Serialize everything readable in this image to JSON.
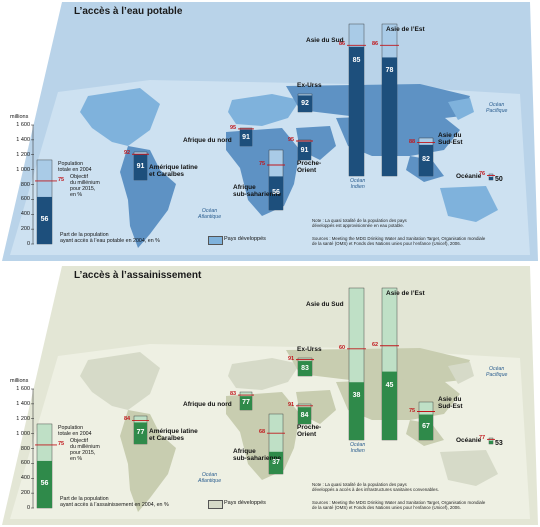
{
  "colors": {
    "water_bg": "#b9d3e9",
    "water_land": "#5e92c4",
    "water_dev": "#7fb2dc",
    "water_bar_light": "#a9cbe7",
    "water_bar_dark": "#1d4f7c",
    "sanit_bg": "#e3e6d5",
    "sanit_land": "#c8cdb0",
    "sanit_dev": "#d6dac8",
    "sanit_bar_light": "#bfe0c6",
    "sanit_bar_dark": "#2f8a4a",
    "target_red": "#c0161b"
  },
  "water": {
    "title": "L’accès à l’eau potable",
    "units": "millions",
    "axis_ticks": [
      "1 600",
      "1 400",
      "1 200",
      "1 000",
      "800",
      "600",
      "400",
      "200",
      "0"
    ],
    "legend": {
      "population": [
        "Population",
        "totale en 2004"
      ],
      "objective": [
        "Objectif",
        "du millénium",
        "pour 2015,",
        "en %"
      ],
      "share": [
        "Part de la population",
        "ayant accès à l’eau potable en 2004, en %"
      ],
      "example_objective": "75",
      "example_value": "56"
    },
    "developed_label": "Pays développés",
    "note": [
      "Note : La quasi totalité de la population des pays",
      "développés est approvisionnée en eau potable."
    ],
    "sources": [
      "Sources : Meeting the MDG Drinking Water and Sanitation Target, Organisation mondiale",
      "de la santé (OMS) et Fonds des Nations unies pour l’enfance (Unicef), 2006."
    ],
    "oceans": {
      "pacific": [
        "Océan",
        "Pacifique"
      ],
      "atlantic": [
        "Océan",
        "Atlantique"
      ],
      "indian": [
        "Océan",
        "Indien"
      ]
    },
    "regions": [
      {
        "name": [
          "Asie du Sud"
        ],
        "value": "85",
        "target": "86"
      },
      {
        "name": [
          "Asie de l’Est"
        ],
        "value": "78",
        "target": "86"
      },
      {
        "name": [
          "Ex-Urss"
        ],
        "value": "92",
        "target": ""
      },
      {
        "name": [
          "Afrique du nord"
        ],
        "value": "91",
        "target": "95"
      },
      {
        "name": [
          "Proche-",
          "Orient"
        ],
        "value": "91",
        "target": "95"
      },
      {
        "name": [
          "Amérique latine",
          "et Caraïbes"
        ],
        "value": "91",
        "target": "92"
      },
      {
        "name": [
          "Afrique",
          "sub-saharienne"
        ],
        "value": "56",
        "target": "75"
      },
      {
        "name": [
          "Asie du",
          "Sud-Est"
        ],
        "value": "82",
        "target": "88"
      },
      {
        "name": [
          "Océanie"
        ],
        "value": "50",
        "target": "76"
      }
    ]
  },
  "sanitation": {
    "title": "L’accès à l’assainissement",
    "units": "millions",
    "axis_ticks": [
      "1 600",
      "1 400",
      "1 200",
      "1 000",
      "800",
      "600",
      "400",
      "200",
      "0"
    ],
    "legend": {
      "population": [
        "Population",
        "totale en 2004"
      ],
      "objective": [
        "Objectif",
        "du millénium",
        "pour 2015,",
        "en %"
      ],
      "share": [
        "Part de la population",
        "ayant accès à l’assainissement en 2004, en %"
      ],
      "example_objective": "75",
      "example_value": "56"
    },
    "developed_label": "Pays développés",
    "note": [
      "Note : La quasi totalité de la population des pays",
      "développés a accès à des infrastructures sanitaires convenables."
    ],
    "sources": [
      "Sources : Meeting the MDG Drinking Water and Sanitation Target, Organisation mondiale",
      "de la santé (OMS) et Fonds des Nations unies pour l’enfance (Unicef), 2006."
    ],
    "oceans": {
      "pacific": [
        "Océan",
        "Pacifique"
      ],
      "atlantic": [
        "Océan",
        "Atlantique"
      ],
      "indian": [
        "Océan",
        "Indien"
      ]
    },
    "regions": [
      {
        "name": [
          "Asie du Sud"
        ],
        "value": "38",
        "target": "60"
      },
      {
        "name": [
          "Asie de l’Est"
        ],
        "value": "45",
        "target": "62"
      },
      {
        "name": [
          "Ex-Urss"
        ],
        "value": "83",
        "target": "91"
      },
      {
        "name": [
          "Afrique du nord"
        ],
        "value": "77",
        "target": "83"
      },
      {
        "name": [
          "Proche-",
          "Orient"
        ],
        "value": "84",
        "target": "91"
      },
      {
        "name": [
          "Amérique latine",
          "et Caraïbes"
        ],
        "value": "77",
        "target": "84"
      },
      {
        "name": [
          "Afrique",
          "sub-saharienne"
        ],
        "value": "37",
        "target": "68"
      },
      {
        "name": [
          "Asie du",
          "Sud-Est"
        ],
        "value": "67",
        "target": "75"
      },
      {
        "name": [
          "Océanie"
        ],
        "value": "53",
        "target": "77"
      }
    ]
  }
}
